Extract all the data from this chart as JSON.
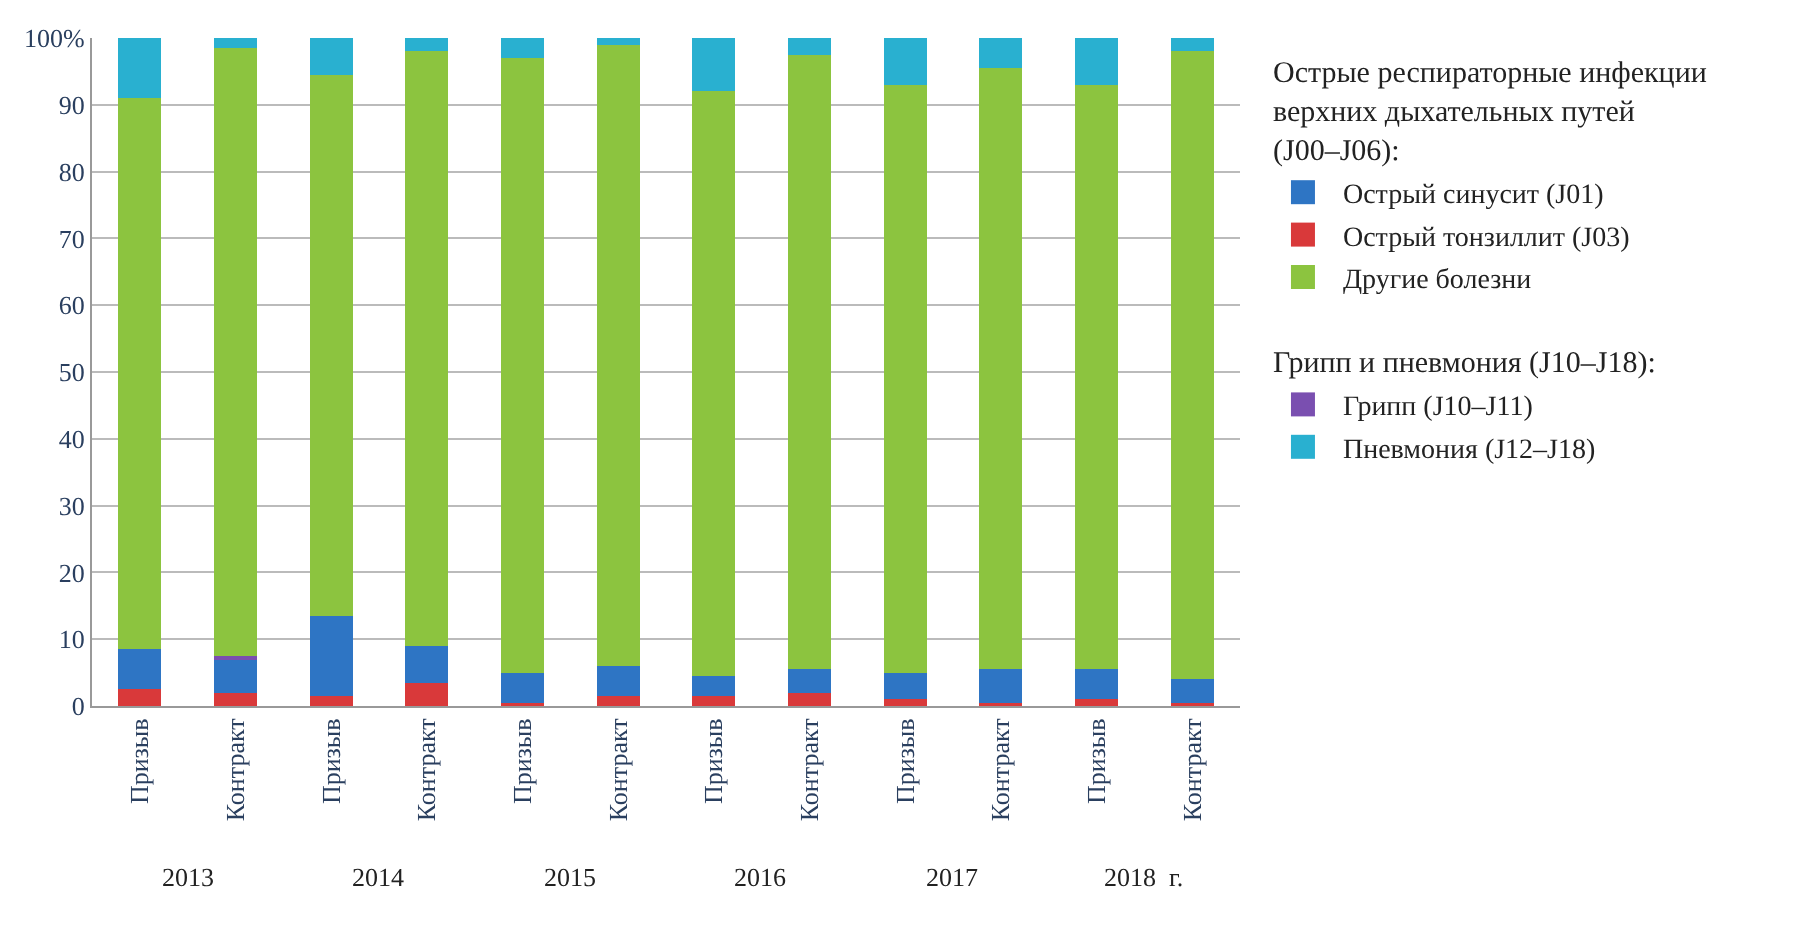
{
  "chart_data": {
    "type": "bar",
    "stacked": true,
    "categories": [
      "Призыв",
      "Контракт",
      "Призыв",
      "Контракт",
      "Призыв",
      "Контракт",
      "Призыв",
      "Контракт",
      "Призыв",
      "Контракт",
      "Призыв",
      "Контракт"
    ],
    "series": [
      {
        "name": "Острый тонзиллит (J03)",
        "color": "#d9393a",
        "values": [
          2.5,
          2,
          1.5,
          3.5,
          0.5,
          1.5,
          1.5,
          2,
          1,
          0.5,
          1,
          0.5
        ]
      },
      {
        "name": "Острый синусит (J01)",
        "color": "#2e75c4",
        "values": [
          6,
          5,
          12,
          5.5,
          4.5,
          4.5,
          3,
          3.5,
          4,
          5,
          4.5,
          3.5
        ]
      },
      {
        "name": "Грипп (J10–J11)",
        "color": "#7a4fb0",
        "values": [
          0,
          0.5,
          0,
          0,
          0,
          0,
          0,
          0,
          0,
          0,
          0,
          0
        ]
      },
      {
        "name": "Другие болезни",
        "color": "#8cc43f",
        "values": [
          82.5,
          91,
          81,
          89,
          92,
          93,
          87.5,
          92,
          88,
          90,
          87.5,
          94
        ]
      },
      {
        "name": "Пневмония (J12–J18)",
        "color": "#29b0d0",
        "values": [
          9,
          1.5,
          5.5,
          2,
          3,
          1,
          8,
          2.5,
          7,
          4.5,
          7,
          2
        ]
      }
    ],
    "ylim": [
      0,
      100
    ],
    "yticks": [
      0,
      10,
      20,
      30,
      40,
      50,
      60,
      70,
      80,
      90,
      {
        "value": 100,
        "label": "100%"
      }
    ],
    "grid": "y",
    "legend": "right",
    "annotations": [
      "Острые респираторные инфекции верхних дыхательных путей (J00–J06):",
      "Грипп и пневмония (J10–J18):",
      "2013",
      "2014",
      "2015",
      "2016",
      "2017",
      "2018  г."
    ]
  }
}
